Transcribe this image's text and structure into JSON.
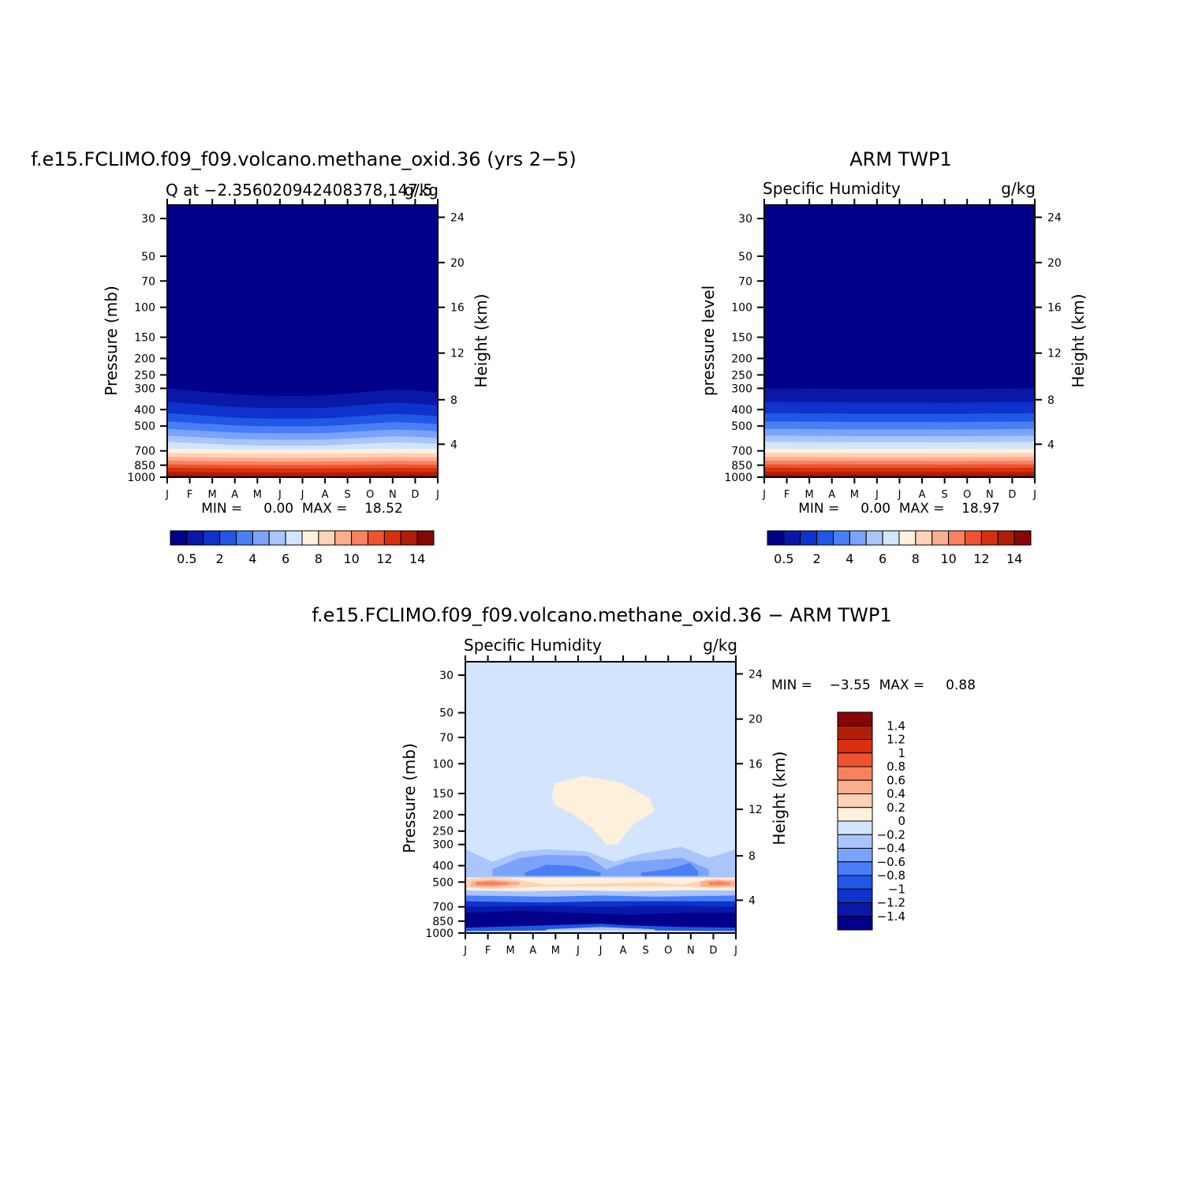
{
  "colors": {
    "qlevels": [
      "#00008a",
      "#0a18a8",
      "#0d33cc",
      "#2157e6",
      "#4a7ef7",
      "#7ba3f9",
      "#a9c5fb",
      "#d3e4fd",
      "#fff0dc",
      "#fdd2b6",
      "#fbae8e",
      "#f88160",
      "#ef5330",
      "#d8300e",
      "#b01e08",
      "#870606"
    ],
    "dlevels": [
      "#00008a",
      "#0a18a8",
      "#0d33cc",
      "#2157e6",
      "#4a7ef7",
      "#7ba3f9",
      "#a9c5fb",
      "#d3e4fd",
      "#fff0dc",
      "#fdd2b6",
      "#fbae8e",
      "#f88160",
      "#ef5330",
      "#d8300e",
      "#b01e08",
      "#870606"
    ]
  },
  "chart_data": [
    {
      "type": "heatmap",
      "title": "f.e15.FCLIMO.f09_f09.volcano.methane_oxid.36 (yrs 2−5)",
      "subtitle_left": "Q  at  −2.356020942408378,147.5",
      "subtitle_right": "g/kg",
      "ylabel": "Pressure  (mb)",
      "ylabel_right": "Height  (km)",
      "x_ticks": [
        "J",
        "F",
        "M",
        "A",
        "M",
        "J",
        "J",
        "A",
        "S",
        "O",
        "N",
        "D",
        "J"
      ],
      "y_ticks": [
        "30",
        "50",
        "70",
        "100",
        "150",
        "200",
        "250",
        "300",
        "400",
        "500",
        "700",
        "850",
        "1000"
      ],
      "y_ticks_right": [
        "24",
        "20",
        "16",
        "12",
        "8",
        "4"
      ],
      "minmax": "MIN =     0.00  MAX =    18.52",
      "colorbar_labels": [
        "0.5",
        "2",
        "4",
        "6",
        "8",
        "10",
        "12",
        "14"
      ],
      "y_scale": "log",
      "ylim": [
        1000,
        25
      ],
      "bands_pressure": [
        1000,
        900,
        850,
        800,
        750,
        700,
        650,
        600,
        550,
        500,
        450,
        400,
        350,
        300
      ],
      "band_shift": [
        0,
        0.4,
        0.8,
        1.2,
        1.4,
        1.5,
        1.5,
        1.4,
        1.0,
        0.6,
        0.2,
        0.4,
        0.8
      ]
    },
    {
      "type": "heatmap",
      "title": "ARM  TWP1",
      "subtitle_left": "Specific  Humidity",
      "subtitle_right": "g/kg",
      "ylabel": "pressure  level",
      "ylabel_right": "Height  (km)",
      "x_ticks": [
        "J",
        "F",
        "M",
        "A",
        "M",
        "J",
        "J",
        "A",
        "S",
        "O",
        "N",
        "D",
        "J"
      ],
      "y_ticks": [
        "30",
        "50",
        "70",
        "100",
        "150",
        "200",
        "250",
        "300",
        "400",
        "500",
        "700",
        "850",
        "1000"
      ],
      "y_ticks_right": [
        "24",
        "20",
        "16",
        "12",
        "8",
        "4"
      ],
      "minmax": "MIN =     0.00  MAX =    18.97",
      "colorbar_labels": [
        "0.5",
        "2",
        "4",
        "6",
        "8",
        "10",
        "12",
        "14"
      ],
      "y_scale": "log",
      "ylim": [
        1000,
        25
      ]
    },
    {
      "type": "heatmap",
      "title": "f.e15.FCLIMO.f09_f09.volcano.methane_oxid.36  −  ARM  TWP1",
      "subtitle_left": "Specific  Humidity",
      "subtitle_right": "g/kg",
      "ylabel": "Pressure  (mb)",
      "ylabel_right": "Height  (km)",
      "x_ticks": [
        "J",
        "F",
        "M",
        "A",
        "M",
        "J",
        "J",
        "A",
        "S",
        "O",
        "N",
        "D",
        "J"
      ],
      "y_ticks": [
        "30",
        "50",
        "70",
        "100",
        "150",
        "200",
        "250",
        "300",
        "400",
        "500",
        "700",
        "850",
        "1000"
      ],
      "y_ticks_right": [
        "24",
        "20",
        "16",
        "12",
        "8",
        "4"
      ],
      "minmax": "MIN =    −3.55  MAX =     0.88",
      "colorbar_labels": [
        "1.4",
        "1.2",
        "1",
        "0.8",
        "0.6",
        "0.4",
        "0.2",
        "0",
        "−0.2",
        "−0.4",
        "−0.6",
        "−0.8",
        "−1",
        "−1.2",
        "−1.4"
      ],
      "y_scale": "log",
      "ylim": [
        1000,
        25
      ]
    }
  ]
}
